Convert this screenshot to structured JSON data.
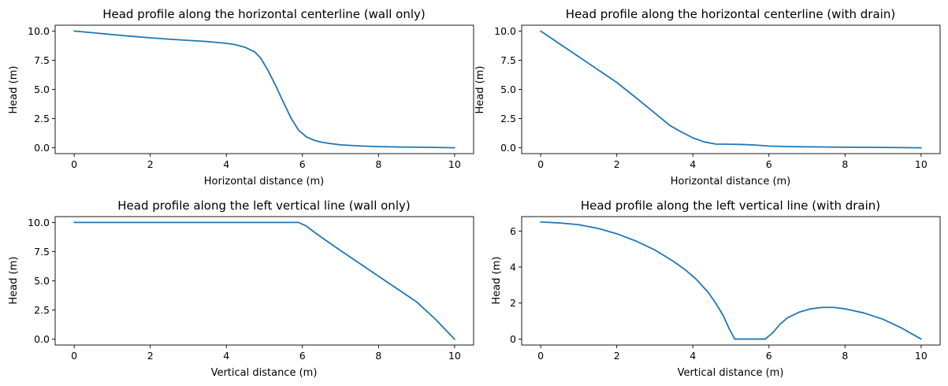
{
  "chart_data": [
    {
      "type": "line",
      "title": "Head profile along the horizontal centerline (wall only)",
      "xlabel": "Horizontal distance (m)",
      "ylabel": "Head (m)",
      "xlim": [
        -0.5,
        10.5
      ],
      "ylim": [
        -0.5,
        10.5
      ],
      "xticks": [
        0,
        2,
        4,
        6,
        8,
        10
      ],
      "xtick_labels": [
        "0",
        "2",
        "4",
        "6",
        "8",
        "10"
      ],
      "yticks": [
        0,
        2.5,
        5,
        7.5,
        10
      ],
      "ytick_labels": [
        "0.0",
        "2.5",
        "5.0",
        "7.5",
        "10.0"
      ],
      "color": "#1f77b4",
      "series": [
        {
          "x": [
            0,
            0.5,
            1,
            1.5,
            2,
            2.5,
            3,
            3.5,
            4,
            4.25,
            4.5,
            4.75,
            4.9,
            5.1,
            5.3,
            5.5,
            5.7,
            5.9,
            6.1,
            6.3,
            6.5,
            6.7,
            7,
            7.5,
            8,
            8.5,
            9,
            9.5,
            10
          ],
          "y": [
            10.0,
            9.85,
            9.7,
            9.55,
            9.42,
            9.3,
            9.2,
            9.1,
            8.95,
            8.82,
            8.6,
            8.2,
            7.7,
            6.6,
            5.3,
            3.9,
            2.55,
            1.5,
            0.95,
            0.65,
            0.48,
            0.38,
            0.25,
            0.16,
            0.1,
            0.07,
            0.05,
            0.03,
            0.0
          ]
        }
      ]
    },
    {
      "type": "line",
      "title": "Head profile along the horizontal centerline (with drain)",
      "xlabel": "Horizontal distance (m)",
      "ylabel": "Head (m)",
      "xlim": [
        -0.5,
        10.5
      ],
      "ylim": [
        -0.5,
        10.5
      ],
      "xticks": [
        0,
        2,
        4,
        6,
        8,
        10
      ],
      "xtick_labels": [
        "0",
        "2",
        "4",
        "6",
        "8",
        "10"
      ],
      "yticks": [
        0,
        2.5,
        5,
        7.5,
        10
      ],
      "ytick_labels": [
        "0.0",
        "2.5",
        "5.0",
        "7.5",
        "10.0"
      ],
      "color": "#1f77b4",
      "series": [
        {
          "x": [
            0,
            0.5,
            1,
            1.5,
            2,
            2.5,
            2.8,
            3.1,
            3.4,
            3.7,
            4,
            4.3,
            4.6,
            5,
            5.3,
            5.6,
            6,
            6.5,
            7,
            8,
            9,
            10
          ],
          "y": [
            10.0,
            8.9,
            7.8,
            6.7,
            5.6,
            4.3,
            3.5,
            2.7,
            1.9,
            1.35,
            0.85,
            0.5,
            0.32,
            0.3,
            0.28,
            0.24,
            0.15,
            0.1,
            0.08,
            0.05,
            0.03,
            0.0
          ]
        }
      ]
    },
    {
      "type": "line",
      "title": "Head profile along the left vertical line (wall only)",
      "xlabel": "Vertical distance (m)",
      "ylabel": "Head (m)",
      "xlim": [
        -0.5,
        10.5
      ],
      "ylim": [
        -0.5,
        10.5
      ],
      "xticks": [
        0,
        2,
        4,
        6,
        8,
        10
      ],
      "xtick_labels": [
        "0",
        "2",
        "4",
        "6",
        "8",
        "10"
      ],
      "yticks": [
        0,
        2.5,
        5,
        7.5,
        10
      ],
      "ytick_labels": [
        "0.0",
        "2.5",
        "5.0",
        "7.5",
        "10.0"
      ],
      "color": "#1f77b4",
      "series": [
        {
          "x": [
            0,
            1,
            2,
            3,
            4,
            5,
            5.9,
            6.1,
            6.3,
            6.6,
            7,
            7.5,
            8,
            8.5,
            9,
            9.5,
            10
          ],
          "y": [
            10.0,
            10.0,
            10.0,
            10.0,
            10.0,
            10.0,
            10.0,
            9.7,
            9.2,
            8.5,
            7.6,
            6.5,
            5.4,
            4.3,
            3.2,
            1.7,
            0.0
          ]
        }
      ]
    },
    {
      "type": "line",
      "title": "Head profile along the left vertical line (with drain)",
      "xlabel": "Vertical distance (m)",
      "ylabel": "Head (m)",
      "xlim": [
        -0.5,
        10.5
      ],
      "ylim": [
        -0.33,
        6.8
      ],
      "xticks": [
        0,
        2,
        4,
        6,
        8,
        10
      ],
      "xtick_labels": [
        "0",
        "2",
        "4",
        "6",
        "8",
        "10"
      ],
      "yticks": [
        0,
        2,
        4,
        6
      ],
      "ytick_labels": [
        "0",
        "2",
        "4",
        "6"
      ],
      "color": "#1f77b4",
      "series": [
        {
          "x": [
            0,
            0.5,
            1,
            1.5,
            2,
            2.5,
            3,
            3.5,
            3.8,
            4.1,
            4.4,
            4.6,
            4.8,
            4.95,
            5.1,
            5.5,
            5.9,
            6.1,
            6.3,
            6.5,
            6.8,
            7.1,
            7.4,
            7.7,
            8,
            8.5,
            9,
            9.5,
            10
          ],
          "y": [
            6.5,
            6.45,
            6.35,
            6.15,
            5.85,
            5.45,
            4.95,
            4.3,
            3.85,
            3.3,
            2.6,
            2.0,
            1.3,
            0.6,
            0.0,
            0.0,
            0.0,
            0.35,
            0.85,
            1.2,
            1.5,
            1.68,
            1.76,
            1.76,
            1.68,
            1.45,
            1.1,
            0.6,
            0.0
          ]
        }
      ]
    }
  ]
}
